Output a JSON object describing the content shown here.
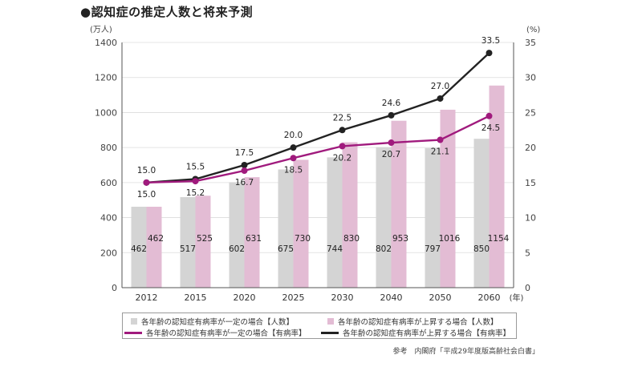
{
  "title": "●認知症の推定人数と将来予測",
  "source": "参考　内閣府「平成29年度版高齢社会白書」",
  "colors": {
    "bar_constant": "#d4d4d4",
    "bar_rising": "#e3bcd4",
    "line_constant": "#a01a7d",
    "line_rising": "#222222",
    "axis": "#555555"
  },
  "chart_data": {
    "type": "bar",
    "categories": [
      "2012",
      "2015",
      "2020",
      "2025",
      "2030",
      "2040",
      "2050",
      "2060"
    ],
    "x_unit": "(年)",
    "left_axis": {
      "unit": "(万人)",
      "ylim": [
        0,
        1400
      ],
      "ticks": [
        0,
        200,
        400,
        600,
        800,
        1000,
        1200,
        1400
      ]
    },
    "right_axis": {
      "unit": "(%)",
      "ylim": [
        0,
        35
      ],
      "ticks": [
        0,
        5,
        10,
        15,
        20,
        25,
        30,
        35
      ]
    },
    "series": [
      {
        "name": "各年齢の認知症有病率が一定の場合【人数】",
        "kind": "bar",
        "axis": "left",
        "values": [
          462,
          517,
          602,
          675,
          744,
          802,
          797,
          850
        ]
      },
      {
        "name": "各年齢の認知症有病率が上昇する場合【人数】",
        "kind": "bar",
        "axis": "left",
        "values": [
          462,
          525,
          631,
          730,
          830,
          953,
          1016,
          1154
        ]
      },
      {
        "name": "各年齢の認知症有病率が一定の場合【有病率】",
        "kind": "line",
        "axis": "right",
        "values": [
          15.0,
          15.2,
          16.7,
          18.5,
          20.2,
          20.7,
          21.1,
          24.5
        ]
      },
      {
        "name": "各年齢の認知症有病率が上昇する場合【有病率】",
        "kind": "line",
        "axis": "right",
        "values": [
          15.0,
          15.5,
          17.5,
          20.0,
          22.5,
          24.6,
          27.0,
          33.5
        ]
      }
    ],
    "grid": true,
    "legend_position": "bottom"
  }
}
